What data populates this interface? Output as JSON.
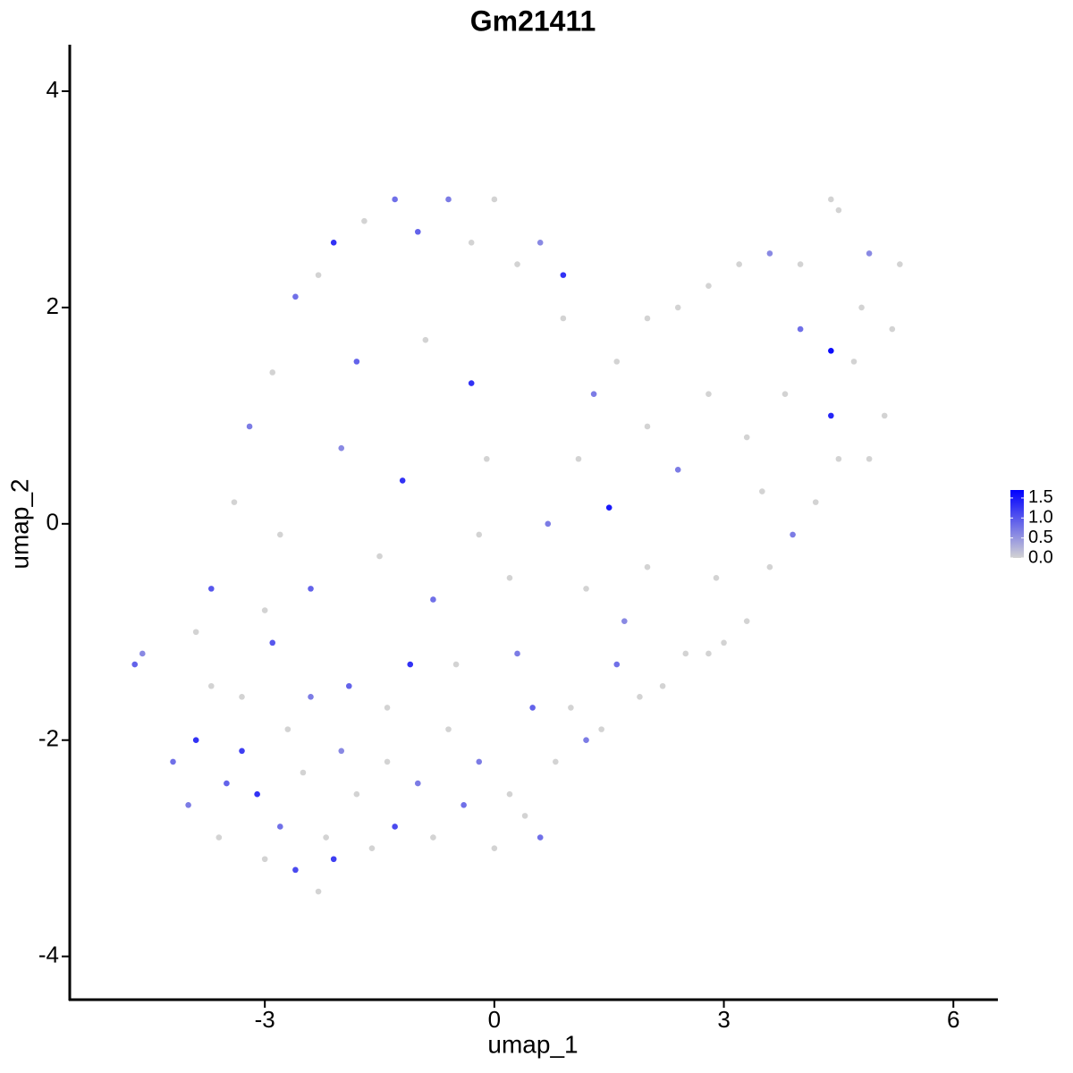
{
  "chart_data": {
    "type": "scatter",
    "title": "Gm21411",
    "x_label": "umap_1",
    "y_label": "umap_2",
    "xlim": [
      -5.55,
      6.57
    ],
    "ylim": [
      -4.4,
      4.43
    ],
    "xticks": [
      -3,
      0,
      3,
      6
    ],
    "yticks": [
      -4,
      -2,
      0,
      2,
      4
    ],
    "color_scale": [
      "#d3d3d3",
      "#0000ff"
    ],
    "color_lim": [
      0,
      1.7
    ],
    "color_ticks": [
      {
        "value": 0,
        "label": "0.0"
      },
      0.5,
      {
        "value": 1,
        "label": "1.0"
      },
      1.5
    ],
    "x": [
      -4.7,
      -4.6,
      -4.2,
      -4.0,
      -3.9,
      -3.7,
      -3.6,
      -3.5,
      -3.3,
      -3.1,
      -3.0,
      -2.9,
      -2.8,
      -2.6,
      -2.5,
      -2.4,
      -2.3,
      -2.2,
      -2.1,
      -2.0,
      -1.9,
      -1.8,
      -1.6,
      -1.4,
      -1.3,
      -1.1,
      -1.0,
      -0.8,
      -0.6,
      -0.4,
      -0.2,
      0.0,
      0.2,
      0.4,
      0.6,
      0.8,
      1.0,
      1.2,
      1.4,
      1.6,
      1.9,
      2.2,
      2.5,
      2.8,
      3.0,
      3.3,
      3.6,
      3.9,
      4.2,
      4.5,
      4.9,
      5.1,
      5.2,
      5.3,
      4.9,
      4.5,
      4.4,
      4.0,
      3.6,
      3.2,
      2.8,
      2.4,
      2.0,
      1.6,
      1.3,
      0.9,
      0.6,
      0.3,
      0.0,
      -0.3,
      -0.6,
      -1.0,
      -1.3,
      -1.7,
      -2.1,
      -2.3,
      -2.6,
      -2.9,
      -3.2,
      -3.4,
      -3.7,
      -3.9,
      4.4,
      4.4,
      1.5,
      -1.2,
      -0.3,
      0.9,
      -0.1,
      -2.0,
      -1.5,
      -0.8,
      0.2,
      0.7,
      1.1,
      2.0,
      2.4,
      2.8,
      3.3,
      3.8,
      4.0,
      2.0,
      1.7,
      1.2,
      0.3,
      -0.5,
      -2.4,
      -2.8,
      -1.8,
      -0.9,
      2.9,
      3.5,
      4.7,
      4.8,
      -2.7,
      -3.3,
      -1.4,
      0.5,
      -3.0,
      -0.2
    ],
    "values": [
      -1.3,
      -1.2,
      -2.2,
      -2.6,
      -2.0,
      -1.5,
      -2.9,
      -2.4,
      -2.1,
      -2.5,
      -3.1,
      -1.1,
      -2.8,
      -3.2,
      -2.3,
      -1.6,
      -3.4,
      -2.9,
      -3.1,
      -2.1,
      -1.5,
      -2.5,
      -3.0,
      -2.2,
      -2.8,
      -1.3,
      -2.4,
      -2.9,
      -1.9,
      -2.6,
      -2.2,
      -3.0,
      -2.5,
      -2.7,
      -2.9,
      -2.2,
      -1.7,
      -2.0,
      -1.9,
      -1.3,
      -1.6,
      -1.5,
      -1.2,
      -1.2,
      -1.1,
      -0.9,
      -0.4,
      -0.1,
      0.2,
      0.6,
      0.6,
      1.0,
      1.8,
      2.4,
      2.5,
      2.9,
      3.0,
      2.4,
      2.5,
      2.4,
      2.2,
      2.0,
      1.9,
      1.5,
      1.2,
      1.9,
      2.6,
      2.4,
      3.0,
      2.6,
      3.0,
      2.7,
      3.0,
      2.8,
      2.6,
      2.3,
      2.1,
      1.4,
      0.9,
      0.2,
      -0.6,
      -1.0,
      1.6,
      1.0,
      0.15,
      0.4,
      1.3,
      2.3,
      0.6,
      0.7,
      -0.3,
      -0.7,
      -0.5,
      0.0,
      0.6,
      0.9,
      0.5,
      1.2,
      0.8,
      1.2,
      1.8,
      -0.4,
      -0.9,
      -0.6,
      -1.2,
      -1.3,
      -0.6,
      -0.1,
      1.5,
      1.7,
      -0.5,
      0.3,
      1.5,
      2.0,
      -1.9,
      -1.6,
      -1.7,
      -1.7,
      -0.8,
      -0.1
    ],
    "expression": [
      0.9,
      0.6,
      0.8,
      0.7,
      1.3,
      0,
      0,
      0.9,
      1.2,
      1.3,
      0,
      1.0,
      0.8,
      1.1,
      0,
      0.7,
      0,
      0,
      1.2,
      0.6,
      0.9,
      0,
      0,
      0,
      1.1,
      1.3,
      0.7,
      0,
      0,
      0.8,
      0.7,
      0,
      0,
      0,
      0.8,
      0,
      0,
      0.7,
      0,
      0.8,
      0,
      0,
      0,
      0,
      0,
      0,
      0,
      0.7,
      0,
      0,
      0,
      0,
      0,
      0,
      0.6,
      0,
      0,
      0,
      0.6,
      0,
      0,
      0,
      0,
      0,
      0.7,
      0,
      0.6,
      0,
      0,
      0,
      0.7,
      0.9,
      0.8,
      0,
      1.3,
      0,
      0.8,
      0,
      0.7,
      0,
      1.0,
      0,
      1.6,
      1.4,
      1.5,
      1.3,
      1.3,
      1.3,
      0,
      0.6,
      0,
      0.8,
      0,
      0.7,
      0,
      0,
      0.7,
      0,
      0,
      0,
      0.8,
      0,
      0.6,
      0,
      0.7,
      0,
      0.9,
      0,
      0.9,
      0,
      0,
      0,
      0,
      0,
      0,
      0,
      0,
      0.9,
      0,
      0
    ]
  }
}
